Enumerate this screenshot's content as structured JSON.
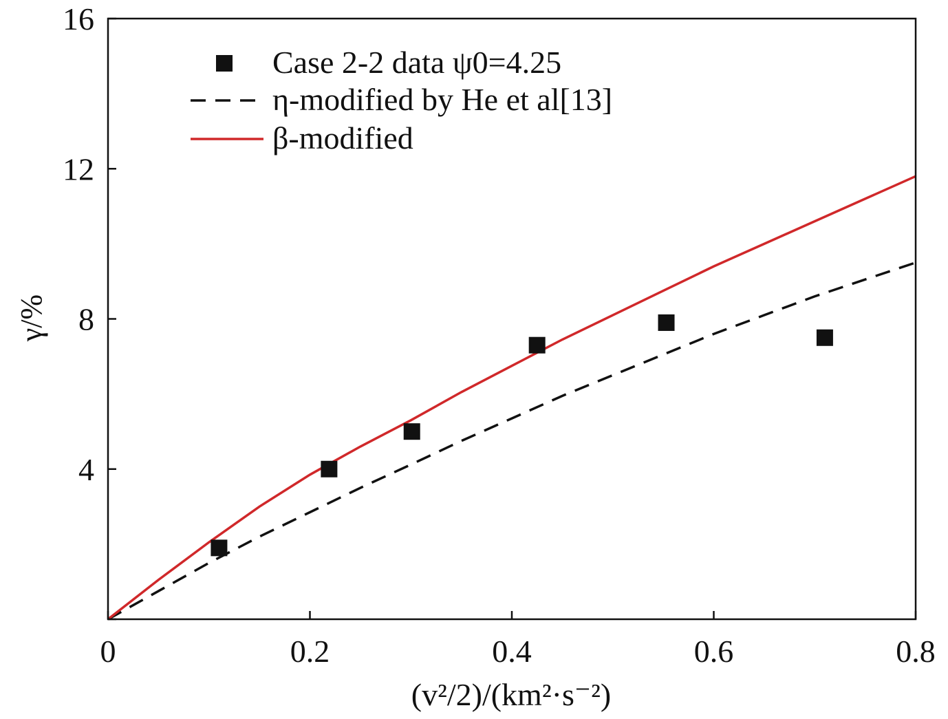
{
  "chart_data": {
    "type": "scatter",
    "title": "",
    "xlabel": "(v²/2)/(km²·s⁻²)",
    "ylabel": "γ/%",
    "xlim": [
      0,
      0.8
    ],
    "ylim": [
      0,
      16
    ],
    "xticks": [
      0,
      0.2,
      0.4,
      0.6,
      0.8
    ],
    "yticks": [
      0,
      4,
      8,
      12,
      16
    ],
    "xtick_labels": [
      "0",
      "0.2",
      "0.4",
      "0.6",
      "0.8"
    ],
    "ytick_labels": [
      "",
      "4",
      "8",
      "12",
      "16"
    ],
    "grid": false,
    "legend_position": "top-left",
    "series": [
      {
        "name": "Case 2-2 data ψ0=4.25",
        "style": "marker-square",
        "color": "#111111",
        "x": [
          0.11,
          0.219,
          0.301,
          0.425,
          0.553,
          0.71
        ],
        "y": [
          1.9,
          4.0,
          5.0,
          7.3,
          7.9,
          7.5
        ]
      },
      {
        "name": "η-modified by He et al[13]",
        "style": "dashed-line",
        "color": "#111111",
        "x": [
          0.0,
          0.05,
          0.1,
          0.15,
          0.2,
          0.25,
          0.3,
          0.35,
          0.4,
          0.45,
          0.5,
          0.55,
          0.6,
          0.65,
          0.7,
          0.75,
          0.8
        ],
        "y": [
          0.0,
          0.75,
          1.5,
          2.2,
          2.85,
          3.5,
          4.12,
          4.75,
          5.35,
          5.95,
          6.5,
          7.05,
          7.6,
          8.1,
          8.6,
          9.05,
          9.5
        ]
      },
      {
        "name": "β-modified",
        "style": "solid-line",
        "color": "#d0282a",
        "x": [
          0.0,
          0.05,
          0.1,
          0.15,
          0.2,
          0.25,
          0.3,
          0.35,
          0.4,
          0.45,
          0.5,
          0.55,
          0.6,
          0.65,
          0.7,
          0.75,
          0.8
        ],
        "y": [
          0.0,
          1.05,
          2.05,
          3.0,
          3.85,
          4.6,
          5.3,
          6.05,
          6.75,
          7.45,
          8.1,
          8.75,
          9.4,
          10.0,
          10.6,
          11.2,
          11.8
        ]
      }
    ]
  }
}
